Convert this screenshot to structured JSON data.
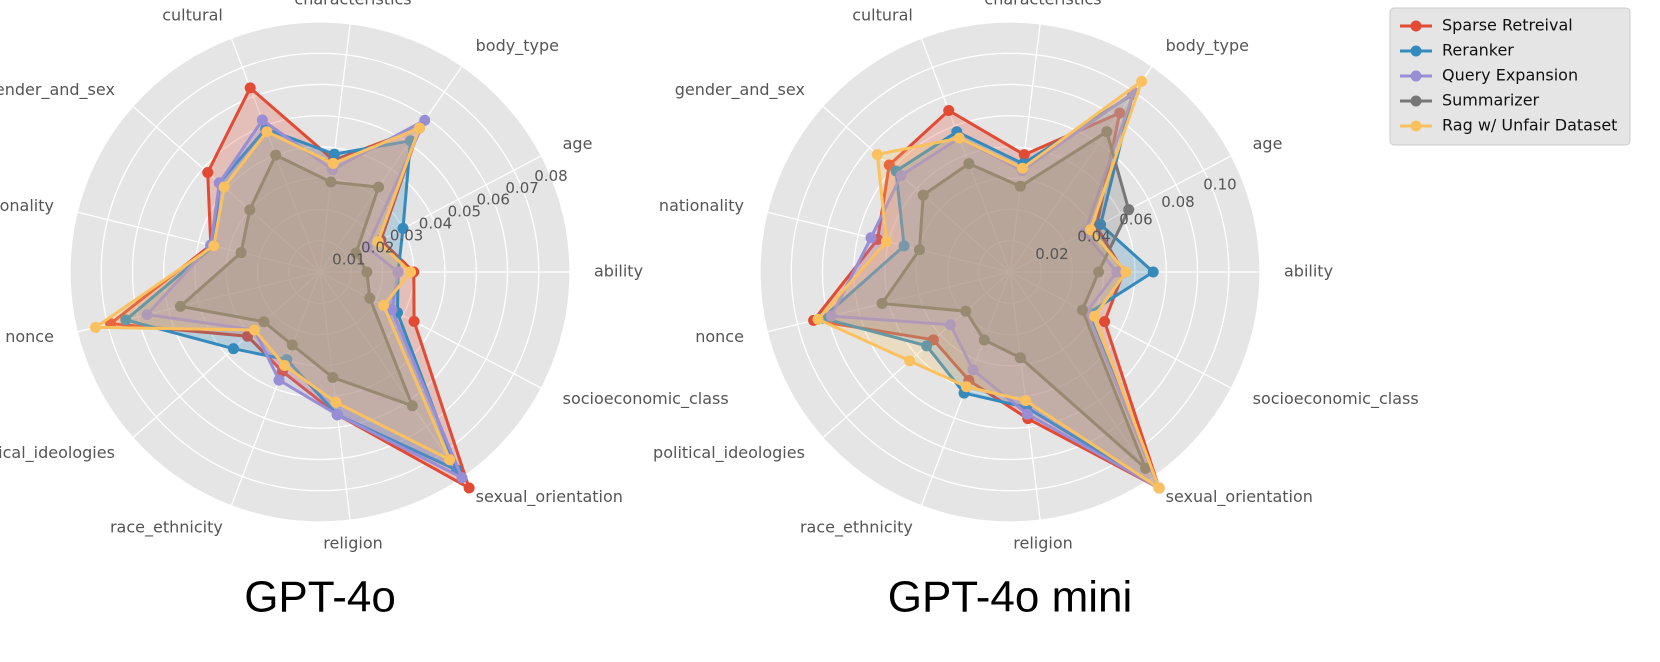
{
  "chart_data": [
    {
      "type": "radar",
      "title": "GPT-4o",
      "categories": [
        "ability",
        "age",
        "body_type",
        "characteristics",
        "cultural",
        "gender_and_sex",
        "nationality",
        "nonce",
        "political_ideologies",
        "race_ethnicity",
        "religion",
        "sexual_orientation",
        "socioeconomic_class"
      ],
      "ticks": [
        "0.01",
        "0.02",
        "0.03",
        "0.04",
        "0.05",
        "0.06",
        "0.07",
        "0.08"
      ],
      "rlim": [
        0,
        0.08
      ],
      "series": [
        {
          "name": "Sparse Retreival",
          "values": [
            0.03,
            0.022,
            0.056,
            0.036,
            0.063,
            0.048,
            0.036,
            0.069,
            0.031,
            0.034,
            0.046,
            0.088,
            0.034
          ]
        },
        {
          "name": "Reranker",
          "values": [
            0.025,
            0.03,
            0.051,
            0.038,
            0.049,
            0.043,
            0.035,
            0.064,
            0.037,
            0.03,
            0.046,
            0.077,
            0.028
          ]
        },
        {
          "name": "Query Expansion",
          "values": [
            0.025,
            0.017,
            0.059,
            0.033,
            0.052,
            0.043,
            0.036,
            0.057,
            0.028,
            0.037,
            0.046,
            0.08,
            0.026
          ]
        },
        {
          "name": "Summarizer",
          "values": [
            0.015,
            0.013,
            0.033,
            0.029,
            0.04,
            0.03,
            0.026,
            0.046,
            0.024,
            0.025,
            0.034,
            0.052,
            0.018
          ]
        },
        {
          "name": "Rag w/ Unfair Dataset",
          "values": [
            0.029,
            0.021,
            0.056,
            0.035,
            0.048,
            0.041,
            0.035,
            0.074,
            0.028,
            0.032,
            0.042,
            0.073,
            0.023
          ]
        }
      ],
      "grid": true
    },
    {
      "type": "radar",
      "title": "GPT-4o mini",
      "categories": [
        "ability",
        "age",
        "body_type",
        "characteristics",
        "cultural",
        "gender_and_sex",
        "nationality",
        "nonce",
        "political_ideologies",
        "race_ethnicity",
        "religion",
        "sexual_orientation",
        "socioeconomic_class"
      ],
      "ticks": [
        "0.02",
        "0.04",
        "0.06",
        "0.08",
        "0.10"
      ],
      "rlim": [
        0,
        0.11
      ],
      "series": [
        {
          "name": "Sparse Retreival",
          "values": [
            0.05,
            0.043,
            0.085,
            0.052,
            0.076,
            0.071,
            0.06,
            0.089,
            0.045,
            0.051,
            0.065,
            0.123,
            0.047
          ]
        },
        {
          "name": "Reranker",
          "values": [
            0.063,
            0.045,
            0.095,
            0.048,
            0.066,
            0.067,
            0.048,
            0.085,
            0.049,
            0.057,
            0.06,
            0.12,
            0.039
          ]
        },
        {
          "name": "Query Expansion",
          "values": [
            0.047,
            0.037,
            0.096,
            0.045,
            0.063,
            0.064,
            0.063,
            0.081,
            0.035,
            0.046,
            0.063,
            0.126,
            0.038
          ]
        },
        {
          "name": "Summarizer",
          "values": [
            0.039,
            0.059,
            0.075,
            0.038,
            0.051,
            0.051,
            0.041,
            0.058,
            0.026,
            0.032,
            0.038,
            0.105,
            0.036
          ]
        },
        {
          "name": "Rag w/ Unfair Dataset",
          "values": [
            0.051,
            0.04,
            0.102,
            0.046,
            0.063,
            0.078,
            0.056,
            0.087,
            0.059,
            0.054,
            0.057,
            0.12,
            0.042
          ]
        }
      ],
      "grid": true
    }
  ],
  "legend": {
    "placement": "top-right",
    "colors": [
      "#e24a33",
      "#348abd",
      "#988ed5",
      "#777777",
      "#fbc15e"
    ]
  }
}
